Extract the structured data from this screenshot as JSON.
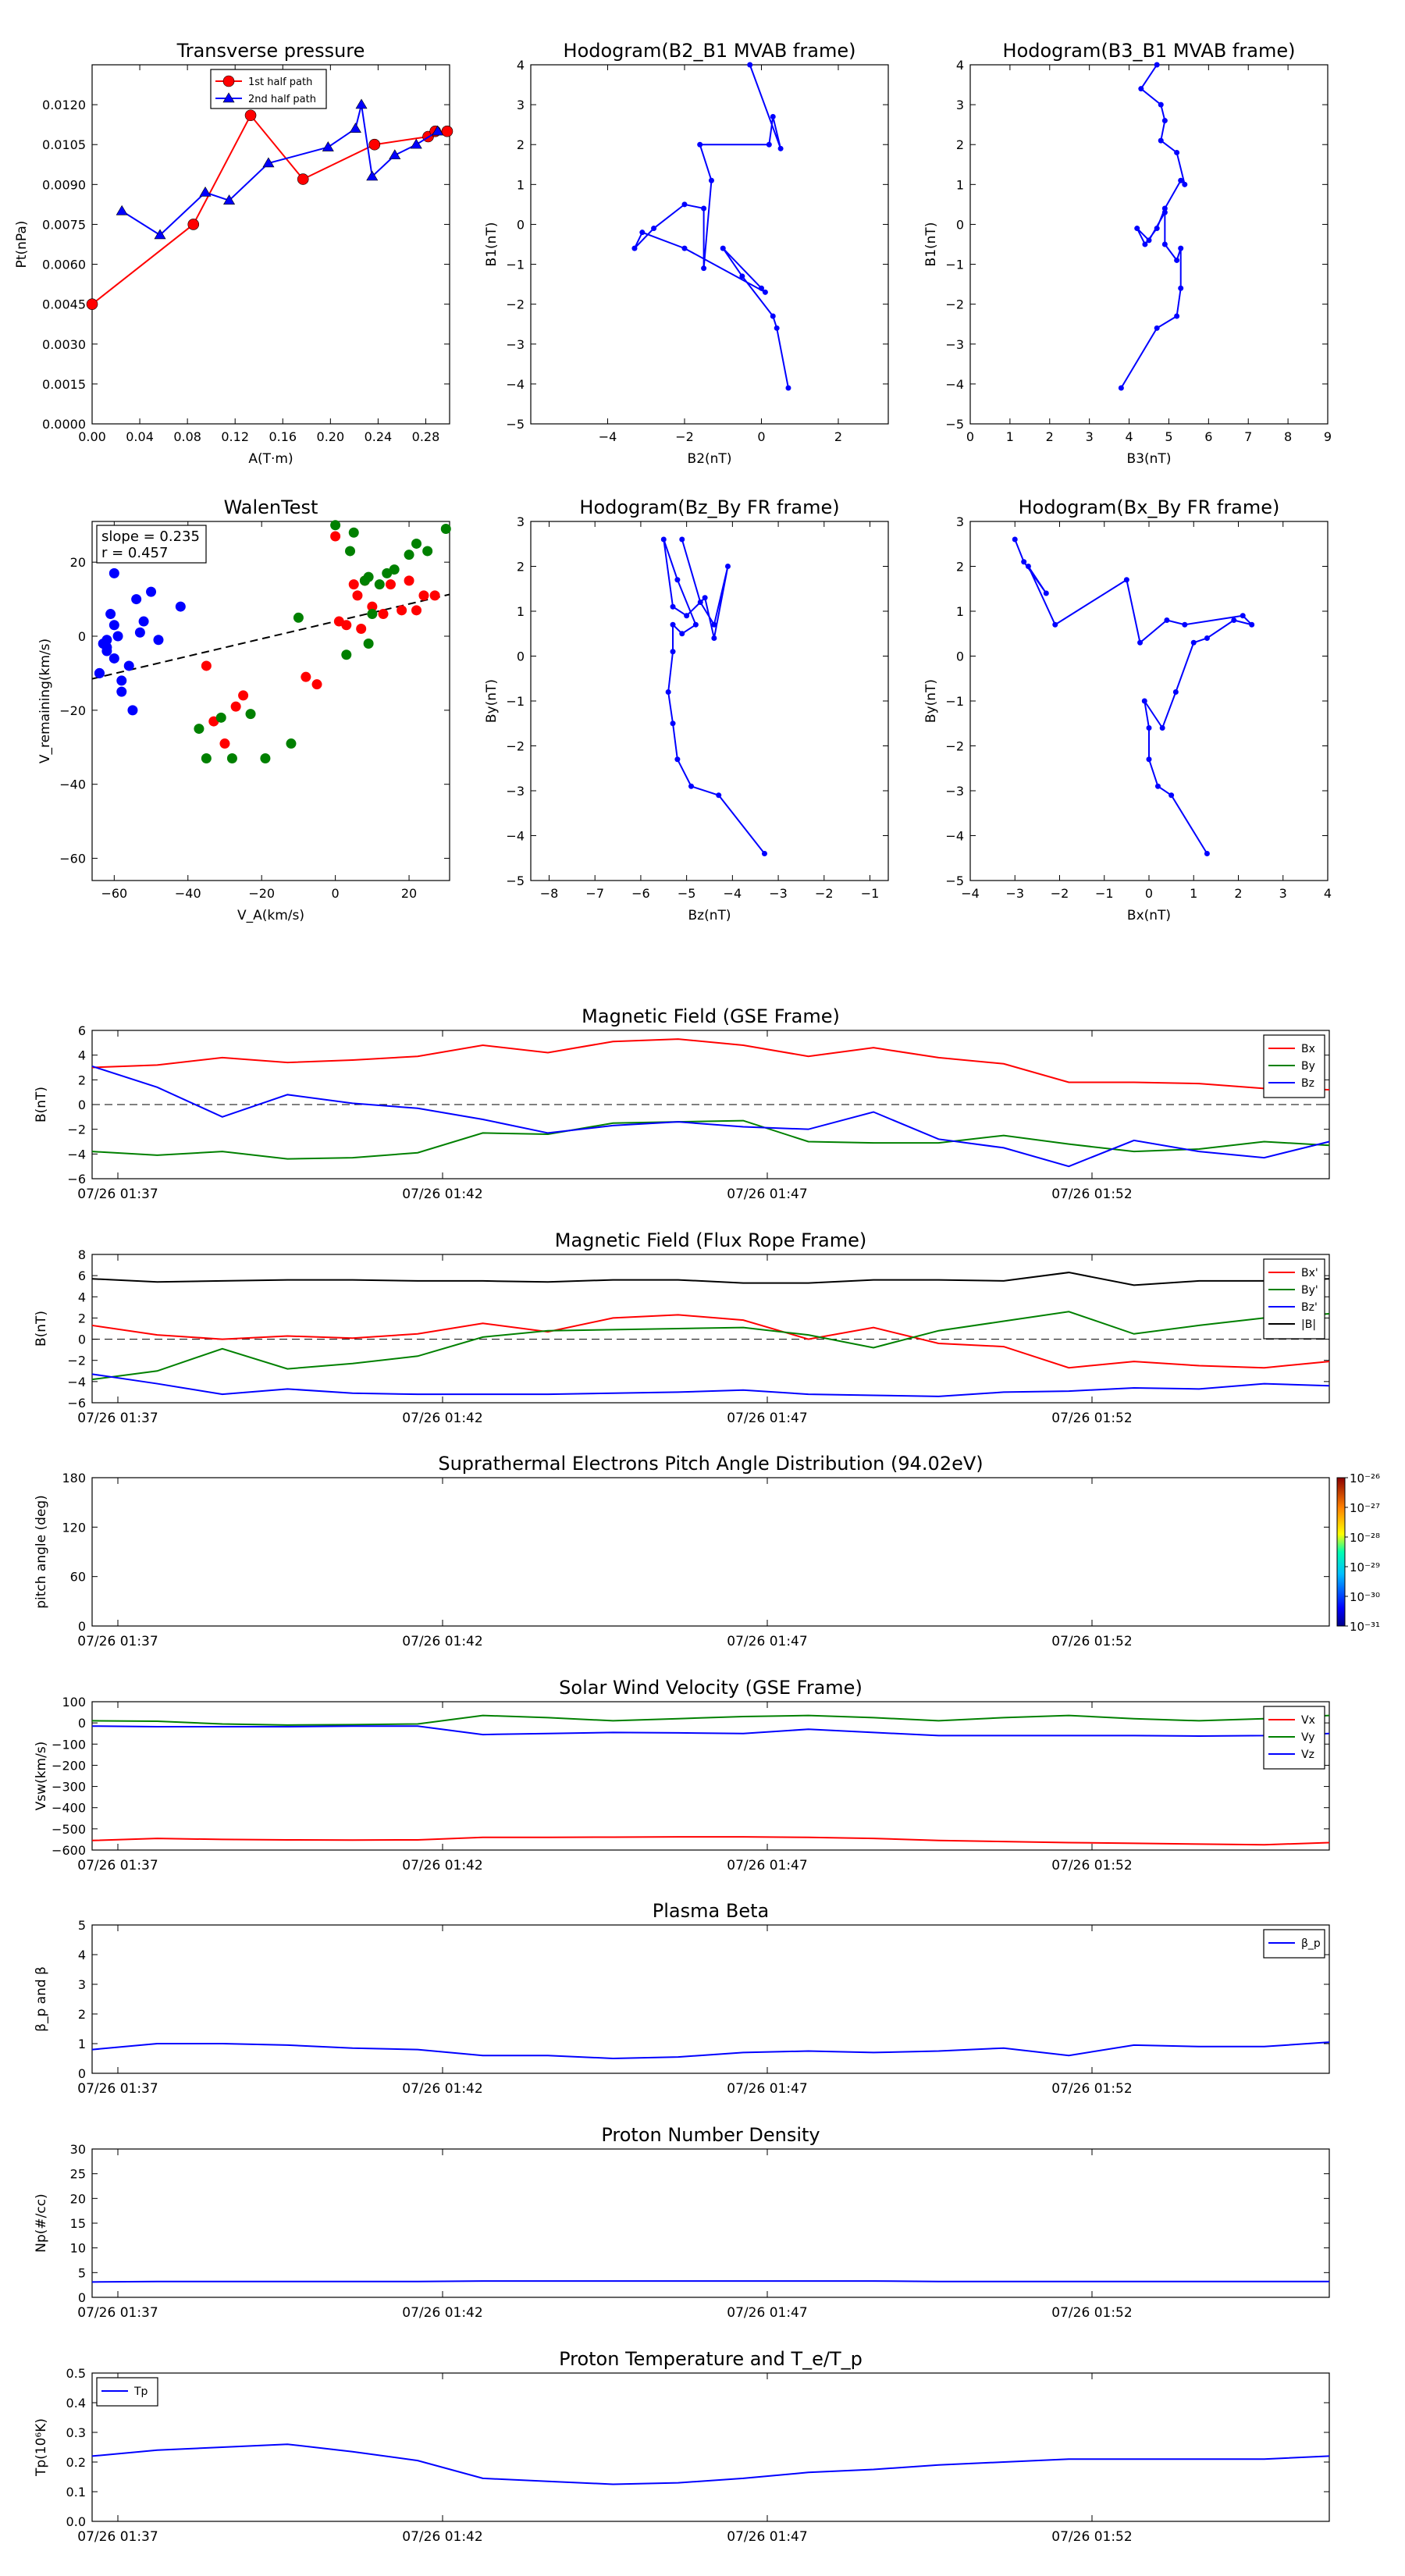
{
  "colors": {
    "red": "#ff0000",
    "green": "#008000",
    "blue": "#0000ff",
    "black": "#000000"
  },
  "time_ticks": [
    "07/26 01:37",
    "07/26 01:42",
    "07/26 01:47",
    "07/26 01:52"
  ],
  "chart_data": [
    {
      "id": "transverse-pressure",
      "type": "line",
      "title": "Transverse pressure",
      "xlabel": "A(T·m)",
      "ylabel": "Pt(nPa)",
      "xlim": [
        0,
        0.3
      ],
      "ylim": [
        0,
        0.0135
      ],
      "xticks": [
        "0.00",
        "0.04",
        "0.08",
        "0.12",
        "0.16",
        "0.20",
        "0.24",
        "0.28"
      ],
      "yticks": [
        "0.0000",
        "0.0015",
        "0.0030",
        "0.0045",
        "0.0060",
        "0.0075",
        "0.0090",
        "0.0105",
        "0.0120"
      ],
      "legend_position": "top-center",
      "series": [
        {
          "name": "1st half path",
          "color": "red",
          "marker": "circle",
          "x": [
            0.0,
            0.085,
            0.133,
            0.177,
            0.237,
            0.282,
            0.288,
            0.298
          ],
          "y": [
            0.0045,
            0.0075,
            0.0116,
            0.0092,
            0.0105,
            0.0108,
            0.011,
            0.011
          ]
        },
        {
          "name": "2nd half path",
          "color": "blue",
          "marker": "triangle",
          "x": [
            0.025,
            0.057,
            0.095,
            0.115,
            0.148,
            0.198,
            0.221,
            0.226,
            0.235,
            0.254,
            0.272,
            0.29
          ],
          "y": [
            0.008,
            0.0071,
            0.0087,
            0.0084,
            0.0098,
            0.0104,
            0.0111,
            0.012,
            0.0093,
            0.0101,
            0.0105,
            0.011
          ]
        }
      ]
    },
    {
      "id": "hodogram-b2-b1",
      "type": "scatter",
      "title": "Hodogram(B2_B1 MVAB frame)",
      "xlabel": "B2(nT)",
      "ylabel": "B1(nT)",
      "xlim": [
        -6,
        3.3
      ],
      "ylim": [
        -5,
        4
      ],
      "xticks": [
        "−4",
        "−2",
        "0",
        "2"
      ],
      "yticks": [
        "−5",
        "−4",
        "−3",
        "−2",
        "−1",
        "0",
        "1",
        "2",
        "3",
        "4"
      ],
      "series": [
        {
          "color": "blue",
          "connected": true,
          "x": [
            0.7,
            0.4,
            0.3,
            -0.5,
            -1.0,
            0.0,
            0.1,
            -2.0,
            -3.1,
            -3.3,
            -2.8,
            -2.0,
            -1.5,
            -1.5,
            -1.3,
            -1.6,
            0.2,
            0.3,
            0.5,
            -0.3
          ],
          "y": [
            -4.1,
            -2.6,
            -2.3,
            -1.3,
            -0.6,
            -1.6,
            -1.7,
            -0.6,
            -0.2,
            -0.6,
            -0.1,
            0.5,
            0.4,
            -1.1,
            1.1,
            2.0,
            2.0,
            2.7,
            1.9,
            4.0
          ]
        }
      ]
    },
    {
      "id": "hodogram-b3-b1",
      "type": "scatter",
      "title": "Hodogram(B3_B1 MVAB frame)",
      "xlabel": "B3(nT)",
      "ylabel": "B1(nT)",
      "xlim": [
        0,
        9
      ],
      "ylim": [
        -5,
        4
      ],
      "xticks": [
        "0",
        "1",
        "2",
        "3",
        "4",
        "5",
        "6",
        "7",
        "8",
        "9"
      ],
      "yticks": [
        "−5",
        "−4",
        "−3",
        "−2",
        "−1",
        "0",
        "1",
        "2",
        "3",
        "4"
      ],
      "series": [
        {
          "color": "blue",
          "connected": true,
          "x": [
            3.8,
            4.7,
            5.2,
            5.3,
            5.3,
            5.2,
            4.9,
            4.9,
            4.5,
            4.2,
            4.4,
            4.7,
            4.9,
            5.3,
            5.4,
            5.2,
            4.8,
            4.9,
            4.8,
            4.3,
            4.7
          ],
          "y": [
            -4.1,
            -2.6,
            -2.3,
            -1.6,
            -0.6,
            -0.9,
            -0.5,
            0.3,
            -0.4,
            -0.1,
            -0.5,
            -0.1,
            0.4,
            1.1,
            1.0,
            1.8,
            2.1,
            2.6,
            3.0,
            3.4,
            4.0
          ]
        }
      ]
    },
    {
      "id": "walen-test",
      "type": "scatter",
      "title": "WalenTest",
      "xlabel": "V_A(km/s)",
      "ylabel": "V_remaining(km/s)",
      "xlim": [
        -66,
        31
      ],
      "ylim": [
        -66,
        31
      ],
      "xticks": [
        "−60",
        "−40",
        "−20",
        "0",
        "20"
      ],
      "yticks": [
        "−60",
        "−40",
        "−20",
        "0",
        "20"
      ],
      "annotation": {
        "slope": "slope = 0.235",
        "r": "r = 0.457"
      },
      "fit_line": {
        "slope": 0.235,
        "intercept": 4.0
      },
      "series": [
        {
          "color": "blue",
          "x": [
            -63,
            -62,
            -60,
            -58,
            -61,
            -64,
            -62,
            -60,
            -58,
            -56,
            -54,
            -52,
            -50,
            -48,
            -53,
            -55,
            -42,
            -60,
            -62,
            -64,
            -59
          ],
          "y": [
            -2,
            -4,
            17,
            -15,
            6,
            -10,
            -1,
            3,
            -12,
            -8,
            10,
            4,
            12,
            -1,
            1,
            -20,
            8,
            -6,
            -3,
            -10,
            0
          ]
        },
        {
          "color": "red",
          "x": [
            -35,
            -33,
            -30,
            -27,
            -25,
            0,
            3,
            5,
            6,
            8,
            10,
            13,
            15,
            18,
            20,
            22,
            24,
            27,
            -8,
            -5,
            1,
            7
          ],
          "y": [
            -8,
            -23,
            -29,
            -19,
            -16,
            27,
            3,
            14,
            11,
            15,
            8,
            6,
            14,
            7,
            15,
            7,
            11,
            11,
            -11,
            -13,
            4,
            2
          ]
        },
        {
          "color": "green",
          "x": [
            -37,
            -35,
            -31,
            -28,
            -23,
            -12,
            -19,
            -10,
            0,
            4,
            5,
            8,
            9,
            10,
            12,
            14,
            16,
            20,
            22,
            25,
            30,
            3,
            9
          ],
          "y": [
            -25,
            -33,
            -22,
            -33,
            -21,
            -29,
            -33,
            5,
            30,
            23,
            28,
            15,
            16,
            6,
            14,
            17,
            18,
            22,
            25,
            23,
            29,
            -5,
            -2
          ]
        }
      ]
    },
    {
      "id": "hodogram-bz-by",
      "type": "scatter",
      "title": "Hodogram(Bz_By FR frame)",
      "xlabel": "Bz(nT)",
      "ylabel": "By(nT)",
      "xlim": [
        -8.4,
        -0.6
      ],
      "ylim": [
        -5,
        3
      ],
      "xticks": [
        "−8",
        "−7",
        "−6",
        "−5",
        "−4",
        "−3",
        "−2",
        "−1"
      ],
      "yticks": [
        "−5",
        "−4",
        "−3",
        "−2",
        "−1",
        "0",
        "1",
        "2",
        "3"
      ],
      "series": [
        {
          "color": "blue",
          "connected": true,
          "x": [
            -3.3,
            -4.3,
            -4.9,
            -5.2,
            -5.3,
            -5.4,
            -5.3,
            -5.3,
            -5.1,
            -4.8,
            -5.2,
            -5.5,
            -5.3,
            -5.0,
            -4.6,
            -4.4,
            -4.1,
            -4.4,
            -4.7,
            -5.1
          ],
          "y": [
            -4.4,
            -3.1,
            -2.9,
            -2.3,
            -1.5,
            -0.8,
            0.1,
            0.7,
            0.5,
            0.7,
            1.7,
            2.6,
            1.1,
            0.9,
            1.3,
            0.4,
            2.0,
            0.7,
            1.2,
            2.6
          ]
        }
      ]
    },
    {
      "id": "hodogram-bx-by",
      "type": "scatter",
      "title": "Hodogram(Bx_By FR frame)",
      "xlabel": "Bx(nT)",
      "ylabel": "By(nT)",
      "xlim": [
        -4,
        4
      ],
      "ylim": [
        -5,
        3
      ],
      "xticks": [
        "−4",
        "−3",
        "−2",
        "−1",
        "0",
        "1",
        "2",
        "3",
        "4"
      ],
      "yticks": [
        "−5",
        "−4",
        "−3",
        "−2",
        "−1",
        "0",
        "1",
        "2",
        "3"
      ],
      "series": [
        {
          "color": "blue",
          "connected": true,
          "x": [
            1.3,
            0.5,
            0.2,
            0.0,
            0.0,
            -0.1,
            0.3,
            0.6,
            1.0,
            1.3,
            1.9,
            2.3,
            2.1,
            0.8,
            0.4,
            -0.2,
            -0.5,
            -2.1,
            -2.7,
            -2.3,
            -2.8,
            -3.0
          ],
          "y": [
            -4.4,
            -3.1,
            -2.9,
            -2.3,
            -1.6,
            -1.0,
            -1.6,
            -0.8,
            0.3,
            0.4,
            0.8,
            0.7,
            0.9,
            0.7,
            0.8,
            0.3,
            1.7,
            0.7,
            2.0,
            1.4,
            2.1,
            2.6
          ]
        }
      ]
    },
    {
      "id": "mag-field-gse",
      "type": "line",
      "title": "Magnetic Field (GSE Frame)",
      "ylabel": "B(nT)",
      "ylim": [
        -6,
        6
      ],
      "yticks": [
        "6",
        "4",
        "2",
        "0",
        "−2",
        "−4",
        "−6"
      ],
      "zero_line": true,
      "legend_position": "top-right",
      "series": [
        {
          "name": "Bx",
          "color": "red",
          "values": [
            3.0,
            3.2,
            3.8,
            3.4,
            3.6,
            3.9,
            4.8,
            4.2,
            5.1,
            5.3,
            4.8,
            3.9,
            4.6,
            3.8,
            3.3,
            1.8,
            1.8,
            1.7,
            1.3,
            1.2
          ]
        },
        {
          "name": "By",
          "color": "green",
          "values": [
            -3.8,
            -4.1,
            -3.8,
            -4.4,
            -4.3,
            -3.9,
            -2.3,
            -2.4,
            -1.5,
            -1.4,
            -1.3,
            -3.0,
            -3.1,
            -3.1,
            -2.5,
            -3.2,
            -3.8,
            -3.6,
            -3.0,
            -3.3
          ]
        },
        {
          "name": "Bz",
          "color": "blue",
          "values": [
            3.1,
            1.4,
            -1.0,
            0.8,
            0.1,
            -0.3,
            -1.2,
            -2.3,
            -1.7,
            -1.4,
            -1.8,
            -2.0,
            -0.6,
            -2.8,
            -3.5,
            -5.0,
            -2.9,
            -3.8,
            -4.3,
            -3.0
          ]
        }
      ]
    },
    {
      "id": "mag-field-fr",
      "type": "line",
      "title": "Magnetic Field (Flux Rope Frame)",
      "ylabel": "B(nT)",
      "ylim": [
        -6,
        8
      ],
      "yticks": [
        "8",
        "6",
        "4",
        "2",
        "0",
        "−2",
        "−4",
        "−6"
      ],
      "zero_line": true,
      "legend_position": "top-right",
      "series": [
        {
          "name": "Bx'",
          "color": "red",
          "values": [
            1.3,
            0.4,
            0.0,
            0.3,
            0.1,
            0.5,
            1.5,
            0.7,
            2.0,
            2.3,
            1.8,
            0.0,
            1.1,
            -0.4,
            -0.7,
            -2.7,
            -2.1,
            -2.5,
            -2.7,
            -2.1
          ]
        },
        {
          "name": "By'",
          "color": "green",
          "values": [
            -3.8,
            -3.0,
            -0.9,
            -2.8,
            -2.3,
            -1.6,
            0.2,
            0.8,
            0.9,
            1.0,
            1.1,
            0.4,
            -0.8,
            0.8,
            1.7,
            2.6,
            0.5,
            1.3,
            2.0,
            2.4
          ]
        },
        {
          "name": "Bz'",
          "color": "blue",
          "values": [
            -3.3,
            -4.2,
            -5.2,
            -4.7,
            -5.1,
            -5.2,
            -5.2,
            -5.2,
            -5.1,
            -5.0,
            -4.8,
            -5.2,
            -5.3,
            -5.4,
            -5.0,
            -4.9,
            -4.6,
            -4.7,
            -4.2,
            -4.4
          ]
        },
        {
          "name": "|B|",
          "color": "black",
          "values": [
            5.7,
            5.4,
            5.5,
            5.6,
            5.6,
            5.5,
            5.5,
            5.4,
            5.6,
            5.6,
            5.3,
            5.3,
            5.6,
            5.6,
            5.5,
            6.3,
            5.1,
            5.5,
            5.5,
            5.7
          ]
        }
      ]
    },
    {
      "id": "pitch-angle",
      "type": "heatmap",
      "title": "Suprathermal Electrons Pitch Angle Distribution (94.02eV)",
      "ylabel": "pitch angle (deg)",
      "ylim": [
        0,
        180
      ],
      "yticks": [
        "180",
        "120",
        "60",
        "0"
      ],
      "colorbar_ticks": [
        "10⁻²⁶",
        "10⁻²⁷",
        "10⁻²⁸",
        "10⁻²⁹",
        "10⁻³⁰",
        "10⁻³¹"
      ]
    },
    {
      "id": "solar-wind-velocity",
      "type": "line",
      "title": "Solar Wind Velocity (GSE Frame)",
      "ylabel": "Vsw(km/s)",
      "ylim": [
        -600,
        100
      ],
      "yticks": [
        "100",
        "0",
        "−100",
        "−200",
        "−300",
        "−400",
        "−500",
        "−600"
      ],
      "legend_position": "top-right",
      "series": [
        {
          "name": "Vx",
          "color": "red",
          "values": [
            -555,
            -545,
            -550,
            -552,
            -553,
            -552,
            -540,
            -540,
            -539,
            -538,
            -538,
            -540,
            -545,
            -555,
            -560,
            -565,
            -568,
            -572,
            -575,
            -565
          ]
        },
        {
          "name": "Vy",
          "color": "green",
          "values": [
            10,
            8,
            -5,
            -10,
            -8,
            -5,
            35,
            25,
            10,
            20,
            30,
            35,
            25,
            10,
            25,
            35,
            20,
            10,
            20,
            35
          ]
        },
        {
          "name": "Vz",
          "color": "blue",
          "values": [
            -15,
            -18,
            -18,
            -18,
            -15,
            -15,
            -55,
            -50,
            -45,
            -47,
            -50,
            -30,
            -45,
            -60,
            -60,
            -60,
            -60,
            -62,
            -60,
            -50
          ]
        }
      ]
    },
    {
      "id": "plasma-beta",
      "type": "line",
      "title": "Plasma Beta",
      "ylabel": "β_p and β",
      "ylim": [
        0,
        5
      ],
      "yticks": [
        "5",
        "4",
        "3",
        "2",
        "1",
        "0"
      ],
      "legend_position": "top-right",
      "series": [
        {
          "name": "β_p",
          "color": "blue",
          "values": [
            0.8,
            1.0,
            1.0,
            0.95,
            0.85,
            0.8,
            0.6,
            0.6,
            0.5,
            0.55,
            0.7,
            0.75,
            0.7,
            0.75,
            0.85,
            0.6,
            0.95,
            0.9,
            0.9,
            1.05
          ]
        }
      ]
    },
    {
      "id": "proton-density",
      "type": "line",
      "title": "Proton Number Density",
      "ylabel": "Np(#/cc)",
      "ylim": [
        0,
        30
      ],
      "yticks": [
        "30",
        "25",
        "20",
        "15",
        "10",
        "5",
        "0"
      ],
      "series": [
        {
          "color": "blue",
          "values": [
            3.1,
            3.2,
            3.2,
            3.2,
            3.2,
            3.2,
            3.3,
            3.3,
            3.3,
            3.3,
            3.3,
            3.3,
            3.3,
            3.2,
            3.2,
            3.2,
            3.2,
            3.2,
            3.2,
            3.2
          ]
        }
      ]
    },
    {
      "id": "proton-temperature",
      "type": "line",
      "title": "Proton Temperature and T_e/T_p",
      "ylabel": "Tp(10⁶K)",
      "ylim": [
        0,
        0.5
      ],
      "yticks": [
        "0.5",
        "0.4",
        "0.3",
        "0.2",
        "0.1",
        "0.0"
      ],
      "legend_position": "top-left",
      "series": [
        {
          "name": "Tp",
          "color": "blue",
          "values": [
            0.22,
            0.24,
            0.25,
            0.26,
            0.235,
            0.205,
            0.145,
            0.135,
            0.125,
            0.13,
            0.145,
            0.165,
            0.175,
            0.19,
            0.2,
            0.21,
            0.21,
            0.21,
            0.21,
            0.22
          ]
        }
      ]
    }
  ]
}
